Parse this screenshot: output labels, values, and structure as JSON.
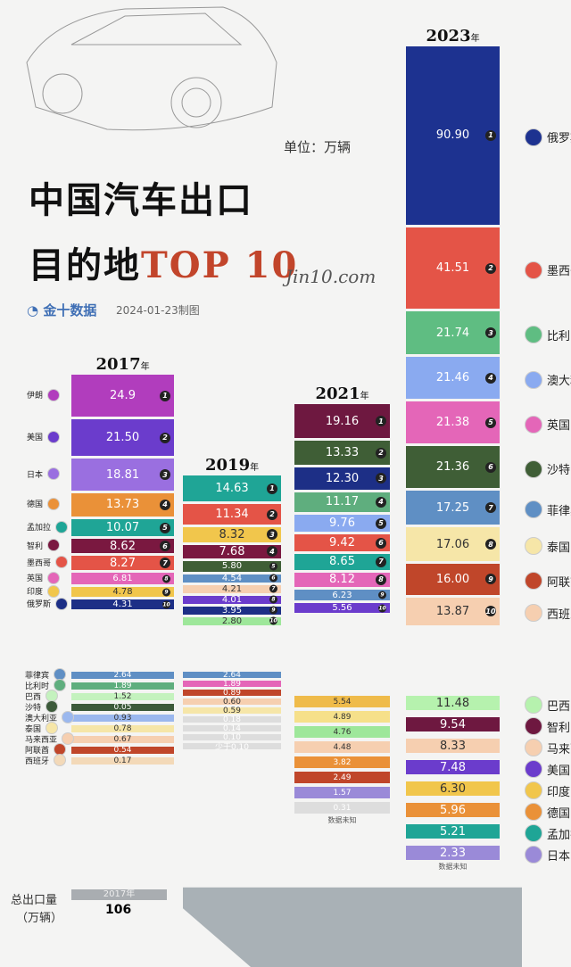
{
  "header": {
    "title_line1": "中国汽车出口",
    "title_line2_cn": "目的地",
    "title_line2_top": "TOP 10",
    "unit": "单位：万辆",
    "brand": "金十数据",
    "date": "2024-01-23制图",
    "signature": "Jin10.com"
  },
  "footer": {
    "label1": "总出口量",
    "label2": "（万辆）",
    "year": "2017年",
    "total": "106"
  },
  "chart_data": {
    "type": "bar",
    "title": "中国汽车出口目的地TOP 10",
    "unit": "万辆",
    "columns": [
      {
        "year": "2017",
        "suffix": "年",
        "top10": [
          {
            "rank": 1,
            "country": "伊朗",
            "value": 24.9,
            "color": "#b13dbd"
          },
          {
            "rank": 2,
            "country": "美国",
            "value": 21.5,
            "color": "#6b3ccc"
          },
          {
            "rank": 3,
            "country": "日本",
            "value": 18.81,
            "color": "#9a6fe0"
          },
          {
            "rank": 4,
            "country": "德国",
            "value": 13.73,
            "color": "#ea9138"
          },
          {
            "rank": 5,
            "country": "孟加拉",
            "value": 10.07,
            "color": "#1fa596"
          },
          {
            "rank": 6,
            "country": "智利",
            "value": 8.62,
            "color": "#7a1840"
          },
          {
            "rank": 7,
            "country": "墨西哥",
            "value": 8.27,
            "color": "#e45447"
          },
          {
            "rank": 8,
            "country": "英国",
            "value": 6.81,
            "color": "#e466b8"
          },
          {
            "rank": 9,
            "country": "印度",
            "value": 4.78,
            "color": "#f1c64c"
          },
          {
            "rank": 10,
            "country": "俄罗斯",
            "value": 4.31,
            "color": "#1d2f86"
          }
        ],
        "others": [
          {
            "country": "菲律宾",
            "value": "2.64",
            "color": "#5f8fc4"
          },
          {
            "country": "比利时",
            "value": "1.89",
            "color": "#5fae7e"
          },
          {
            "country": "巴西",
            "value": "1.52",
            "color": "#c4f2be"
          },
          {
            "country": "沙特",
            "value": "0.05",
            "color": "#3c5a3a"
          },
          {
            "country": "澳大利亚",
            "value": "0.93",
            "color": "#9bb8ee"
          },
          {
            "country": "泰国",
            "value": "0.78",
            "color": "#f6e6a8"
          },
          {
            "country": "马来西亚",
            "value": "0.67",
            "color": "#f6cfb0"
          },
          {
            "country": "阿联酋",
            "value": "0.54",
            "color": "#c0462a"
          },
          {
            "country": "西班牙",
            "value": "0.17",
            "color": "#f3d9b8"
          }
        ]
      },
      {
        "year": "2019",
        "suffix": "年",
        "top10": [
          {
            "rank": 1,
            "value": 14.63,
            "color": "#1fa596"
          },
          {
            "rank": 2,
            "value": 11.34,
            "color": "#e45447"
          },
          {
            "rank": 3,
            "value": 8.32,
            "color": "#f1c64c"
          },
          {
            "rank": 4,
            "value": 7.68,
            "color": "#7a1840"
          },
          {
            "rank": 5,
            "value": 5.8,
            "color": "#3f5e36"
          },
          {
            "rank": 6,
            "value": 4.54,
            "color": "#5f8fc4"
          },
          {
            "rank": 7,
            "value": 4.21,
            "color": "#f6cfb0"
          },
          {
            "rank": 8,
            "value": 4.01,
            "color": "#6b3ccc"
          },
          {
            "rank": 9,
            "value": 3.95,
            "color": "#1d2f86"
          },
          {
            "rank": 10,
            "value": 2.8,
            "color": "#9ee79a"
          }
        ],
        "others": [
          {
            "value": "2.64",
            "color": "#5f8fc4"
          },
          {
            "value": "1.89",
            "color": "#e466b8"
          },
          {
            "value": "0.89",
            "color": "#c0462a"
          },
          {
            "value": "0.60",
            "color": "#f6cfb0"
          },
          {
            "value": "0.59",
            "color": "#f6e6a8"
          },
          {
            "value": "0.18",
            "color": "#ddd"
          },
          {
            "value": "0.14",
            "color": "#ddd"
          },
          {
            "value": "0.10",
            "color": "#ddd"
          },
          {
            "value": "少于0.10",
            "color": "#ddd"
          }
        ]
      },
      {
        "year": "2021",
        "suffix": "年",
        "top10": [
          {
            "rank": 1,
            "value": 19.16,
            "color": "#6e1840"
          },
          {
            "rank": 2,
            "value": 13.33,
            "color": "#3f5e36"
          },
          {
            "rank": 3,
            "value": 12.3,
            "color": "#1d2f86"
          },
          {
            "rank": 4,
            "value": 11.17,
            "color": "#5fae7e"
          },
          {
            "rank": 5,
            "value": 9.76,
            "color": "#8aaaf0"
          },
          {
            "rank": 6,
            "value": 9.42,
            "color": "#e45447"
          },
          {
            "rank": 7,
            "value": 8.65,
            "color": "#1fa596"
          },
          {
            "rank": 8,
            "value": 8.12,
            "color": "#e466b8"
          },
          {
            "rank": 9,
            "value": 6.23,
            "color": "#5f8fc4"
          },
          {
            "rank": 10,
            "value": 5.56,
            "color": "#6b3ccc"
          }
        ],
        "others": [
          {
            "value": "5.54",
            "color": "#efbb4a"
          },
          {
            "value": "4.89",
            "color": "#f6e08a"
          },
          {
            "value": "4.76",
            "color": "#9ee79a"
          },
          {
            "value": "4.48",
            "color": "#f6cfb0"
          },
          {
            "value": "3.82",
            "color": "#ea9138"
          },
          {
            "value": "2.49",
            "color": "#c0462a"
          },
          {
            "value": "1.57",
            "color": "#9a8ad8"
          },
          {
            "value": "0.31",
            "color": "#ddd"
          }
        ],
        "note": "数据未知"
      },
      {
        "year": "2023",
        "suffix": "年",
        "top10": [
          {
            "rank": 1,
            "country": "俄罗斯",
            "value": 90.9,
            "color": "#1d3290"
          },
          {
            "rank": 2,
            "country": "墨西哥",
            "value": 41.51,
            "color": "#e45447"
          },
          {
            "rank": 3,
            "country": "比利时",
            "value": 21.74,
            "color": "#5fbd82"
          },
          {
            "rank": 4,
            "country": "澳大利亚",
            "value": 21.46,
            "color": "#8aaaf0"
          },
          {
            "rank": 5,
            "country": "英国",
            "value": 21.38,
            "color": "#e466b8"
          },
          {
            "rank": 6,
            "country": "沙特",
            "value": 21.36,
            "color": "#3f5e36"
          },
          {
            "rank": 7,
            "country": "菲律宾",
            "value": 17.25,
            "color": "#5f8fc4"
          },
          {
            "rank": 8,
            "country": "泰国",
            "value": 17.06,
            "color": "#f6e6a8"
          },
          {
            "rank": 9,
            "country": "阿联酋",
            "value": 16.0,
            "color": "#c0462a"
          },
          {
            "rank": 10,
            "country": "西班牙",
            "value": 13.87,
            "color": "#f6cfb0"
          }
        ],
        "others": [
          {
            "country": "巴西",
            "value": "11.48",
            "color": "#b6f2ae"
          },
          {
            "country": "智利",
            "value": "9.54",
            "color": "#6e1840"
          },
          {
            "country": "马来西亚",
            "value": "8.33",
            "color": "#f6cfb0"
          },
          {
            "country": "美国",
            "value": "7.48",
            "color": "#6b3ccc"
          },
          {
            "country": "印度",
            "value": "6.30",
            "color": "#f1c64c"
          },
          {
            "country": "德国",
            "value": "5.96",
            "color": "#ea9138"
          },
          {
            "country": "孟加拉",
            "value": "5.21",
            "color": "#1fa596"
          },
          {
            "country": "日本",
            "value": "2.33",
            "color": "#9a8ad8"
          }
        ],
        "note": "数据未知"
      }
    ]
  }
}
